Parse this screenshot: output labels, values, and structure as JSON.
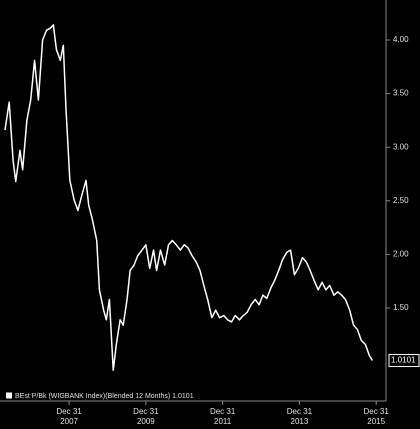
{
  "chart_data": {
    "type": "line",
    "x": [
      2006.33,
      2006.44,
      2006.54,
      2006.61,
      2006.72,
      2006.79,
      2006.9,
      2007.0,
      2007.1,
      2007.2,
      2007.31,
      2007.41,
      2007.51,
      2007.59,
      2007.67,
      2007.77,
      2007.85,
      2007.92,
      2008.02,
      2008.13,
      2008.23,
      2008.33,
      2008.44,
      2008.51,
      2008.61,
      2008.72,
      2008.79,
      2008.9,
      2008.97,
      2009.05,
      2009.15,
      2009.23,
      2009.33,
      2009.41,
      2009.51,
      2009.59,
      2009.69,
      2009.79,
      2009.9,
      2010.0,
      2010.1,
      2010.2,
      2010.28,
      2010.38,
      2010.49,
      2010.59,
      2010.69,
      2010.79,
      2010.9,
      2011.0,
      2011.1,
      2011.2,
      2011.31,
      2011.41,
      2011.51,
      2011.61,
      2011.72,
      2011.82,
      2011.92,
      2012.03,
      2012.13,
      2012.23,
      2012.33,
      2012.44,
      2012.54,
      2012.64,
      2012.74,
      2012.85,
      2012.95,
      2013.05,
      2013.15,
      2013.26,
      2013.36,
      2013.46,
      2013.56,
      2013.67,
      2013.77,
      2013.87,
      2013.97,
      2014.08,
      2014.18,
      2014.28,
      2014.38,
      2014.49,
      2014.59,
      2014.69,
      2014.79,
      2014.9,
      2015.0,
      2015.1,
      2015.2,
      2015.31,
      2015.41,
      2015.51,
      2015.61,
      2015.72,
      2015.82,
      2015.9
    ],
    "series": [
      {
        "name": "BEst P/Bk (WIGBANK Index)(Blended 12 Months) 1.0101",
        "color": "#ffffff",
        "values": [
          3.16,
          3.42,
          2.88,
          2.68,
          2.97,
          2.79,
          3.25,
          3.44,
          3.81,
          3.44,
          4.0,
          4.09,
          4.11,
          4.14,
          3.91,
          3.81,
          3.95,
          3.35,
          2.69,
          2.51,
          2.41,
          2.55,
          2.69,
          2.46,
          2.32,
          2.13,
          1.67,
          1.48,
          1.39,
          1.58,
          0.92,
          1.16,
          1.39,
          1.34,
          1.58,
          1.85,
          1.9,
          1.99,
          2.04,
          2.09,
          1.87,
          2.04,
          1.85,
          2.04,
          1.9,
          2.09,
          2.13,
          2.09,
          2.04,
          2.09,
          2.06,
          1.99,
          1.93,
          1.85,
          1.71,
          1.58,
          1.41,
          1.48,
          1.41,
          1.43,
          1.39,
          1.37,
          1.43,
          1.39,
          1.43,
          1.46,
          1.53,
          1.58,
          1.53,
          1.62,
          1.59,
          1.69,
          1.76,
          1.85,
          1.95,
          2.02,
          2.04,
          1.81,
          1.87,
          1.97,
          1.93,
          1.85,
          1.76,
          1.67,
          1.74,
          1.67,
          1.71,
          1.62,
          1.65,
          1.62,
          1.58,
          1.48,
          1.34,
          1.3,
          1.2,
          1.16,
          1.06,
          1.0101
        ],
        "value_labels": [
          null,
          null,
          null,
          null,
          null,
          null,
          null,
          null,
          null,
          null,
          null,
          null,
          null,
          null,
          null,
          null,
          null,
          null,
          null,
          null,
          null,
          null,
          null,
          null,
          null,
          null,
          null,
          null,
          null,
          null,
          null,
          null,
          null,
          null,
          null,
          null,
          null,
          null,
          null,
          null,
          null,
          null,
          null,
          null,
          null,
          null,
          null,
          null,
          null,
          null,
          null,
          null,
          null,
          null,
          null,
          null,
          null,
          null,
          null,
          null,
          null,
          null,
          null,
          null,
          null,
          null,
          null,
          null,
          null,
          null,
          null,
          null,
          null,
          null,
          null,
          null,
          null,
          null,
          null,
          null,
          null,
          null,
          null,
          null,
          null,
          null,
          null,
          null,
          null,
          null,
          null,
          null,
          null,
          null,
          null,
          null,
          null,
          "1.0101"
        ]
      }
    ],
    "xlim": [
      2006.2,
      2016.23
    ],
    "xticks": [
      {
        "value": 2008,
        "label": "Dec 31\n2007"
      },
      {
        "value": 2010,
        "label": "Dec 31\n2009"
      },
      {
        "value": 2012,
        "label": "Dec 31\n2011"
      },
      {
        "value": 2014,
        "label": "Dec 31\n2013"
      },
      {
        "value": 2016,
        "label": "Dec 31\n2015"
      }
    ],
    "ylim": [
      0.642,
      4.373
    ],
    "yticks": [
      {
        "value": 1.5,
        "label": "1.50"
      },
      {
        "value": 2,
        "label": "2.00"
      },
      {
        "value": 2.5,
        "label": "2.50"
      },
      {
        "value": 3,
        "label": "3.00"
      },
      {
        "value": 3.5,
        "label": "3.50"
      },
      {
        "value": 4,
        "label": "4.00"
      }
    ],
    "grid": false,
    "legend": "lower left"
  }
}
